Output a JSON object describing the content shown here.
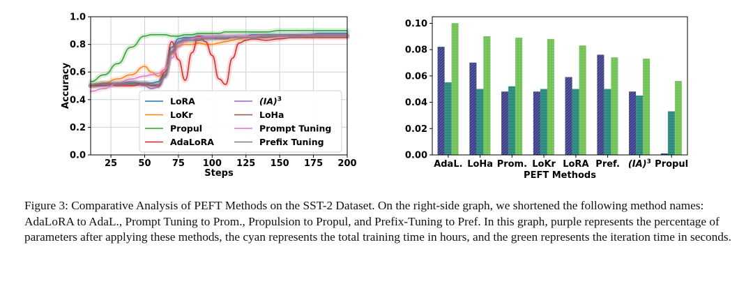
{
  "figure": {
    "caption": "Figure 3: Comparative Analysis of PEFT Methods on the SST-2 Dataset. On the right-side graph, we shortened the following method names: AdaLoRA to AdaL., Prompt Tuning to Prom., Propulsion to Propul, and Prefix-Tuning to Pref. In this graph, purple represents the percentage of parameters after applying these methods, the cyan represents the total training time in hours, and the green represents the iteration time in seconds."
  },
  "chart_data": [
    {
      "type": "line",
      "xlabel": "Steps",
      "ylabel": "Accuracy",
      "xlim": [
        10,
        200
      ],
      "ylim": [
        0.0,
        1.0
      ],
      "xticks": [
        "25",
        "50",
        "75",
        "100",
        "125",
        "150",
        "175",
        "200"
      ],
      "yticks": [
        "0.0",
        "0.2",
        "0.4",
        "0.6",
        "0.8",
        "1.0"
      ],
      "grid": true,
      "legend_position": "lower-center",
      "colors": {
        "LoRA": "#1f77b4",
        "LoKr": "#ff7f0e",
        "Propul": "#2ca02c",
        "AdaLoRA": "#d62728",
        "(IA)^3": "#9467bd",
        "LoHa": "#8c564b",
        "Prompt Tuning": "#e377c2",
        "Prefix Tuning": "#7f7f7f"
      },
      "x": [
        10,
        20,
        30,
        40,
        50,
        55,
        60,
        65,
        70,
        75,
        80,
        85,
        90,
        95,
        100,
        105,
        110,
        115,
        120,
        125,
        130,
        140,
        150,
        160,
        170,
        180,
        190,
        200
      ],
      "series": [
        {
          "name": "LoRA",
          "values": [
            0.5,
            0.51,
            0.52,
            0.52,
            0.52,
            0.52,
            0.53,
            0.6,
            0.78,
            0.84,
            0.85,
            0.85,
            0.86,
            0.86,
            0.86,
            0.86,
            0.86,
            0.86,
            0.86,
            0.86,
            0.87,
            0.87,
            0.87,
            0.87,
            0.87,
            0.88,
            0.88,
            0.88
          ]
        },
        {
          "name": "LoKr",
          "values": [
            0.5,
            0.52,
            0.55,
            0.58,
            0.64,
            0.6,
            0.57,
            0.62,
            0.73,
            0.79,
            0.8,
            0.8,
            0.81,
            0.8,
            0.8,
            0.81,
            0.82,
            0.83,
            0.84,
            0.85,
            0.85,
            0.86,
            0.86,
            0.86,
            0.86,
            0.86,
            0.86,
            0.86
          ]
        },
        {
          "name": "Propul",
          "values": [
            0.53,
            0.58,
            0.66,
            0.78,
            0.86,
            0.87,
            0.87,
            0.87,
            0.86,
            0.86,
            0.87,
            0.87,
            0.88,
            0.88,
            0.88,
            0.88,
            0.89,
            0.89,
            0.89,
            0.89,
            0.89,
            0.89,
            0.9,
            0.9,
            0.9,
            0.9,
            0.9,
            0.9
          ]
        },
        {
          "name": "AdaLoRA",
          "values": [
            0.5,
            0.52,
            0.5,
            0.5,
            0.51,
            0.5,
            0.5,
            0.6,
            0.82,
            0.69,
            0.54,
            0.74,
            0.86,
            0.82,
            0.72,
            0.55,
            0.51,
            0.7,
            0.81,
            0.83,
            0.84,
            0.83,
            0.84,
            0.85,
            0.85,
            0.85,
            0.85,
            0.85
          ]
        },
        {
          "name": "(IA)^3",
          "values": [
            0.5,
            0.5,
            0.51,
            0.53,
            0.5,
            0.48,
            0.49,
            0.56,
            0.75,
            0.82,
            0.84,
            0.84,
            0.84,
            0.85,
            0.85,
            0.85,
            0.85,
            0.85,
            0.86,
            0.86,
            0.86,
            0.86,
            0.86,
            0.86,
            0.87,
            0.87,
            0.87,
            0.87
          ]
        },
        {
          "name": "LoHa",
          "values": [
            0.5,
            0.5,
            0.51,
            0.51,
            0.52,
            0.5,
            0.51,
            0.58,
            0.74,
            0.81,
            0.83,
            0.83,
            0.83,
            0.84,
            0.84,
            0.84,
            0.84,
            0.85,
            0.85,
            0.85,
            0.85,
            0.85,
            0.86,
            0.86,
            0.86,
            0.86,
            0.86,
            0.86
          ]
        },
        {
          "name": "Prompt Tuning",
          "values": [
            0.46,
            0.48,
            0.52,
            0.55,
            0.57,
            0.58,
            0.59,
            0.62,
            0.7,
            0.78,
            0.82,
            0.84,
            0.85,
            0.86,
            0.86,
            0.86,
            0.86,
            0.86,
            0.86,
            0.86,
            0.86,
            0.86,
            0.86,
            0.86,
            0.86,
            0.86,
            0.86,
            0.86
          ]
        },
        {
          "name": "Prefix Tuning",
          "values": [
            0.51,
            0.52,
            0.52,
            0.53,
            0.52,
            0.51,
            0.51,
            0.57,
            0.74,
            0.81,
            0.83,
            0.83,
            0.84,
            0.84,
            0.84,
            0.85,
            0.85,
            0.85,
            0.85,
            0.85,
            0.85,
            0.86,
            0.86,
            0.86,
            0.86,
            0.86,
            0.86,
            0.86
          ]
        }
      ]
    },
    {
      "type": "bar",
      "xlabel": "PEFT Methods",
      "ylabel": "",
      "ylim": [
        0.0,
        0.105
      ],
      "yticks": [
        "0.00",
        "0.02",
        "0.04",
        "0.06",
        "0.08",
        "0.10"
      ],
      "categories": [
        "AdaL.",
        "LoHa",
        "Prom.",
        "LoKr",
        "LoRA",
        "Pref.",
        "(IA)^3",
        "Propul"
      ],
      "series": [
        {
          "name": "",
          "color": "#3b3d82",
          "values": [
            0.082,
            0.07,
            0.048,
            0.048,
            0.059,
            0.076,
            0.048,
            0.001
          ]
        },
        {
          "name": "",
          "color": "#2e8a7e",
          "values": [
            0.055,
            0.05,
            0.052,
            0.05,
            0.05,
            0.05,
            0.045,
            0.033
          ]
        },
        {
          "name": "",
          "color": "#73c35a",
          "values": [
            0.1,
            0.09,
            0.089,
            0.088,
            0.083,
            0.074,
            0.073,
            0.056
          ]
        }
      ]
    }
  ]
}
